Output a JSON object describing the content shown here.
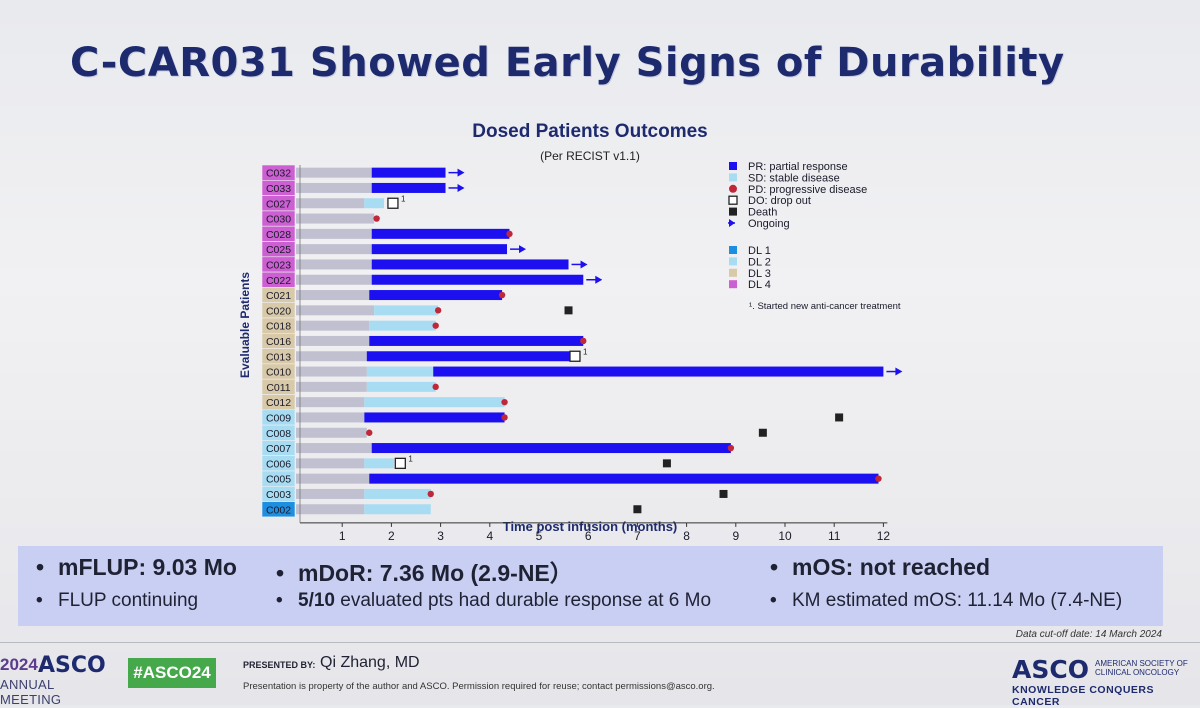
{
  "slide": {
    "title": "C-CAR031 Showed Early Signs of Durability"
  },
  "chart_data": {
    "type": "bar",
    "orientation": "horizontal-swimmer",
    "title": "Dosed Patients Outcomes",
    "subtitle": "(Per RECIST v1.1)",
    "xlabel": "Time post infusion (months)",
    "ylabel": "Evaluable Patients",
    "xlim": [
      0,
      12
    ],
    "xticks": [
      1,
      2,
      3,
      4,
      5,
      6,
      7,
      8,
      9,
      10,
      11,
      12
    ],
    "legend": {
      "placement": "right",
      "status": [
        {
          "key": "PR",
          "label": "PR: partial response",
          "color": "#1c10f0",
          "marker": "square"
        },
        {
          "key": "SD",
          "label": "SD: stable disease",
          "color": "#a8dcf2",
          "marker": "square"
        },
        {
          "key": "PD",
          "label": "PD: progressive disease",
          "color": "#c0283a",
          "marker": "circle"
        },
        {
          "key": "DO",
          "label": "DO: drop out",
          "color": "#222222",
          "marker": "open-square"
        },
        {
          "key": "Death",
          "label": "Death",
          "color": "#222222",
          "marker": "filled-square"
        },
        {
          "key": "Ongoing",
          "label": "Ongoing",
          "color": "#1c10f0",
          "marker": "arrow"
        }
      ],
      "dose_levels": [
        {
          "key": "DL1",
          "label": "DL 1",
          "color": "#1e8fe0"
        },
        {
          "key": "DL2",
          "label": "DL 2",
          "color": "#a8dcf2"
        },
        {
          "key": "DL3",
          "label": "DL 3",
          "color": "#d8c9a9"
        },
        {
          "key": "DL4",
          "label": "DL 4",
          "color": "#cc5fd2"
        }
      ],
      "footnote": "¹. Started new anti-cancer treatment",
      "footnote_marker": "1"
    },
    "colors": {
      "baseline": "#c0c0d0",
      "PR": "#1c10f0",
      "SD": "#a8dcf2",
      "PD": "#c0283a",
      "marker": "#222222"
    },
    "patients": [
      {
        "id": "C032",
        "dl": "DL4",
        "base_end": 1.6,
        "segments": [
          {
            "status": "PR",
            "start": 1.6,
            "end": 3.1
          }
        ],
        "ongoing": true
      },
      {
        "id": "C033",
        "dl": "DL4",
        "base_end": 1.6,
        "segments": [
          {
            "status": "PR",
            "start": 1.6,
            "end": 3.1
          }
        ],
        "ongoing": true
      },
      {
        "id": "C027",
        "dl": "DL4",
        "base_end": 1.45,
        "segments": [
          {
            "status": "SD",
            "start": 1.45,
            "end": 1.85
          }
        ],
        "dropout": 1.95,
        "footnote": true
      },
      {
        "id": "C030",
        "dl": "DL4",
        "base_end": 1.65,
        "segments": [],
        "pd": 1.7
      },
      {
        "id": "C028",
        "dl": "DL4",
        "base_end": 1.6,
        "segments": [
          {
            "status": "PR",
            "start": 1.6,
            "end": 4.4
          }
        ],
        "pd": 4.4
      },
      {
        "id": "C025",
        "dl": "DL4",
        "base_end": 1.6,
        "segments": [
          {
            "status": "PR",
            "start": 1.6,
            "end": 4.35
          }
        ],
        "ongoing": true
      },
      {
        "id": "C023",
        "dl": "DL4",
        "base_end": 1.6,
        "segments": [
          {
            "status": "PR",
            "start": 1.6,
            "end": 5.6
          }
        ],
        "ongoing": true
      },
      {
        "id": "C022",
        "dl": "DL4",
        "base_end": 1.6,
        "segments": [
          {
            "status": "PR",
            "start": 1.6,
            "end": 5.9
          }
        ],
        "ongoing": true
      },
      {
        "id": "C021",
        "dl": "DL3",
        "base_end": 1.55,
        "segments": [
          {
            "status": "PR",
            "start": 1.55,
            "end": 4.25
          }
        ],
        "pd": 4.25
      },
      {
        "id": "C020",
        "dl": "DL3",
        "base_end": 1.65,
        "segments": [
          {
            "status": "SD",
            "start": 1.65,
            "end": 2.95
          }
        ],
        "pd": 2.95,
        "death": 5.6
      },
      {
        "id": "C018",
        "dl": "DL3",
        "base_end": 1.55,
        "segments": [
          {
            "status": "SD",
            "start": 1.55,
            "end": 2.9
          }
        ],
        "pd": 2.9
      },
      {
        "id": "C016",
        "dl": "DL3",
        "base_end": 1.55,
        "segments": [
          {
            "status": "PR",
            "start": 1.55,
            "end": 5.9
          }
        ],
        "pd": 5.9
      },
      {
        "id": "C013",
        "dl": "DL3",
        "base_end": 1.5,
        "segments": [
          {
            "status": "PR",
            "start": 1.5,
            "end": 5.65
          }
        ],
        "dropout": 5.65,
        "footnote": true
      },
      {
        "id": "C010",
        "dl": "DL3",
        "base_end": 1.5,
        "segments": [
          {
            "status": "SD",
            "start": 1.5,
            "end": 2.85
          },
          {
            "status": "PR",
            "start": 2.85,
            "end": 12.0
          }
        ],
        "ongoing": true
      },
      {
        "id": "C011",
        "dl": "DL3",
        "base_end": 1.5,
        "segments": [
          {
            "status": "SD",
            "start": 1.5,
            "end": 2.9
          }
        ],
        "pd": 2.9
      },
      {
        "id": "C012",
        "dl": "DL3",
        "base_end": 1.45,
        "segments": [
          {
            "status": "SD",
            "start": 1.45,
            "end": 4.3
          }
        ],
        "pd": 4.3
      },
      {
        "id": "C009",
        "dl": "DL2",
        "base_end": 1.45,
        "segments": [
          {
            "status": "PR",
            "start": 1.45,
            "end": 4.3
          }
        ],
        "pd": 4.3,
        "death": 11.1
      },
      {
        "id": "C008",
        "dl": "DL2",
        "base_end": 1.5,
        "segments": [],
        "pd": 1.55,
        "death": 9.55
      },
      {
        "id": "C007",
        "dl": "DL2",
        "base_end": 1.6,
        "segments": [
          {
            "status": "PR",
            "start": 1.6,
            "end": 8.9
          }
        ],
        "pd": 8.9
      },
      {
        "id": "C006",
        "dl": "DL2",
        "base_end": 1.45,
        "segments": [
          {
            "status": "SD",
            "start": 1.45,
            "end": 2.05
          }
        ],
        "dropout": 2.1,
        "footnote": true,
        "death": 7.6
      },
      {
        "id": "C005",
        "dl": "DL2",
        "base_end": 1.55,
        "segments": [
          {
            "status": "PR",
            "start": 1.55,
            "end": 11.9
          }
        ],
        "pd": 11.9
      },
      {
        "id": "C003",
        "dl": "DL2",
        "base_end": 1.45,
        "segments": [
          {
            "status": "SD",
            "start": 1.45,
            "end": 2.8
          }
        ],
        "pd": 2.8,
        "death": 8.75
      },
      {
        "id": "C002",
        "dl": "DL1",
        "base_end": 1.45,
        "segments": [
          {
            "status": "SD",
            "start": 1.45,
            "end": 2.8
          }
        ],
        "death": 7.0
      }
    ]
  },
  "summary": {
    "col1": {
      "head": "mFLUP: 9.03 Mo",
      "sub": "FLUP continuing"
    },
    "col2": {
      "head": "mDoR: 7.36 Mo (2.9-NE）",
      "sub_bold": "5/10",
      "sub_rest": " evaluated pts had durable response at 6 Mo"
    },
    "col3": {
      "head": "mOS: not reached",
      "sub": "KM estimated mOS: 11.14 Mo (7.4-NE)"
    },
    "bullet": "•"
  },
  "cutoff": "Data cut-off date: 14 March 2024",
  "footer": {
    "year": "2024",
    "asco": "ASCO",
    "annual": "ANNUAL MEETING",
    "hashtag": "#ASCO24",
    "presented_by": "PRESENTED BY:",
    "presenter": "Qi Zhang, MD",
    "property": "Presentation is property of the author and ASCO. Permission required for reuse; contact permissions@asco.org.",
    "asco_right": "ASCO",
    "society": "AMERICAN SOCIETY OF CLINICAL ONCOLOGY",
    "tagline": "KNOWLEDGE CONQUERS CANCER"
  }
}
